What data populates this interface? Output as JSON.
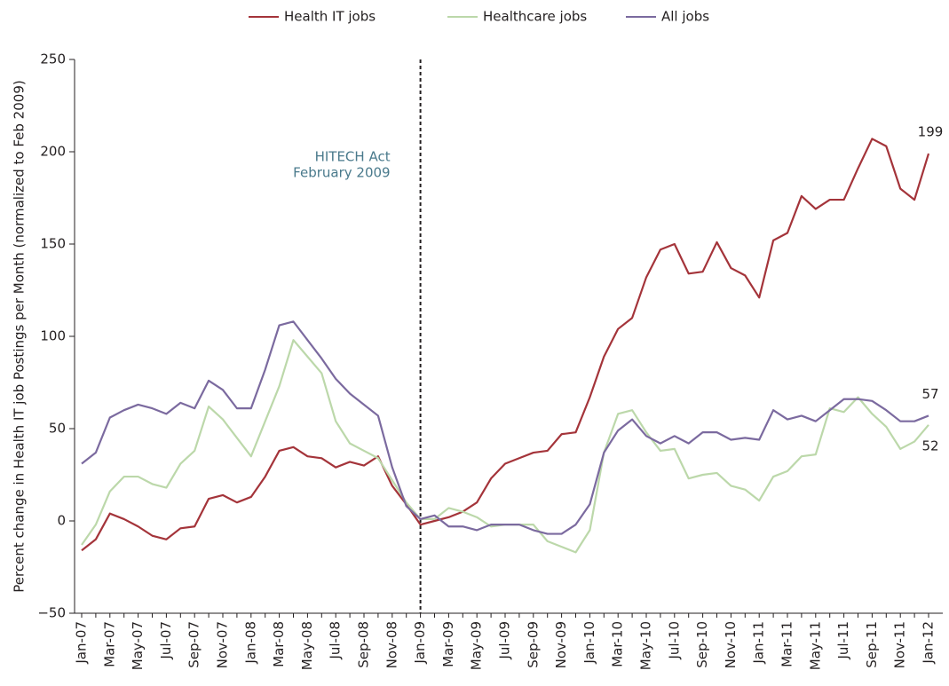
{
  "chart_data": {
    "type": "line",
    "y_label": "Percent change in Health IT job Postings per Month (normalized to Feb 2009)",
    "categories": [
      "Jan-07",
      null,
      "Mar-07",
      null,
      "May-07",
      null,
      "Jul-07",
      null,
      "Sep-07",
      null,
      "Nov-07",
      null,
      "Jan-08",
      null,
      "Mar-08",
      null,
      "May-08",
      null,
      "Jul-08",
      null,
      "Sep-08",
      null,
      "Nov-08",
      null,
      "Jan-09",
      null,
      "Mar-09",
      null,
      "May-09",
      null,
      "Jul-09",
      null,
      "Sep-09",
      null,
      "Nov-09",
      null,
      "Jan-10",
      null,
      "Mar-10",
      null,
      "May-10",
      null,
      "Jul-10",
      null,
      "Sep-10",
      null,
      "Nov-10",
      null,
      "Jan-11",
      null,
      "Mar-11",
      null,
      "May-11",
      null,
      "Jul-11",
      null,
      "Sep-11",
      null,
      "Nov-11",
      null,
      "Jan-12"
    ],
    "series": [
      {
        "name": "Health IT jobs",
        "color": "#a4343a",
        "values": [
          -16,
          -10,
          4,
          1,
          -3,
          -8,
          -10,
          -4,
          -3,
          12,
          14,
          10,
          13,
          24,
          38,
          40,
          35,
          34,
          29,
          32,
          30,
          35,
          19,
          9,
          -2,
          0,
          2,
          5,
          10,
          23,
          31,
          34,
          37,
          38,
          47,
          48,
          67,
          89,
          104,
          110,
          132,
          147,
          150,
          134,
          135,
          151,
          137,
          133,
          121,
          152,
          156,
          176,
          169,
          174,
          174,
          191,
          207,
          203,
          180,
          174,
          199
        ]
      },
      {
        "name": "Healthcare jobs",
        "color": "#bcd8aa",
        "values": [
          -13,
          -2,
          16,
          24,
          24,
          20,
          18,
          31,
          38,
          62,
          55,
          45,
          35,
          54,
          73,
          98,
          89,
          80,
          54,
          42,
          38,
          34,
          22,
          10,
          1,
          1,
          7,
          5,
          2,
          -3,
          -2,
          -2,
          -2,
          -11,
          -14,
          -17,
          -5,
          37,
          58,
          60,
          48,
          38,
          39,
          23,
          25,
          26,
          19,
          17,
          11,
          24,
          27,
          35,
          36,
          61,
          59,
          67,
          58,
          51,
          39,
          43,
          52
        ]
      },
      {
        "name": "All jobs",
        "color": "#7b6a9f",
        "values": [
          31,
          37,
          56,
          60,
          63,
          61,
          58,
          64,
          61,
          76,
          71,
          61,
          61,
          82,
          106,
          108,
          98,
          88,
          77,
          69,
          63,
          57,
          29,
          8,
          1,
          3,
          -3,
          -3,
          -5,
          -2,
          -2,
          -2,
          -5,
          -7,
          -7,
          -2,
          9,
          37,
          49,
          55,
          46,
          42,
          46,
          42,
          48,
          48,
          44,
          45,
          44,
          60,
          55,
          57,
          54,
          60,
          66,
          66,
          65,
          60,
          54,
          54,
          57
        ]
      }
    ],
    "value_labels": [
      {
        "series": 0,
        "index": 60
      },
      {
        "series": 2,
        "index": 60
      },
      {
        "series": 1,
        "index": 60
      }
    ],
    "annotation": {
      "lines": [
        "HITECH Act",
        "February 2009"
      ],
      "x": "Jan-09"
    },
    "ylim": [
      -50,
      250
    ],
    "yticks": [
      {
        "value": -50,
        "label": "−50"
      },
      0,
      50,
      100,
      150,
      200,
      250
    ],
    "legend": "top"
  }
}
